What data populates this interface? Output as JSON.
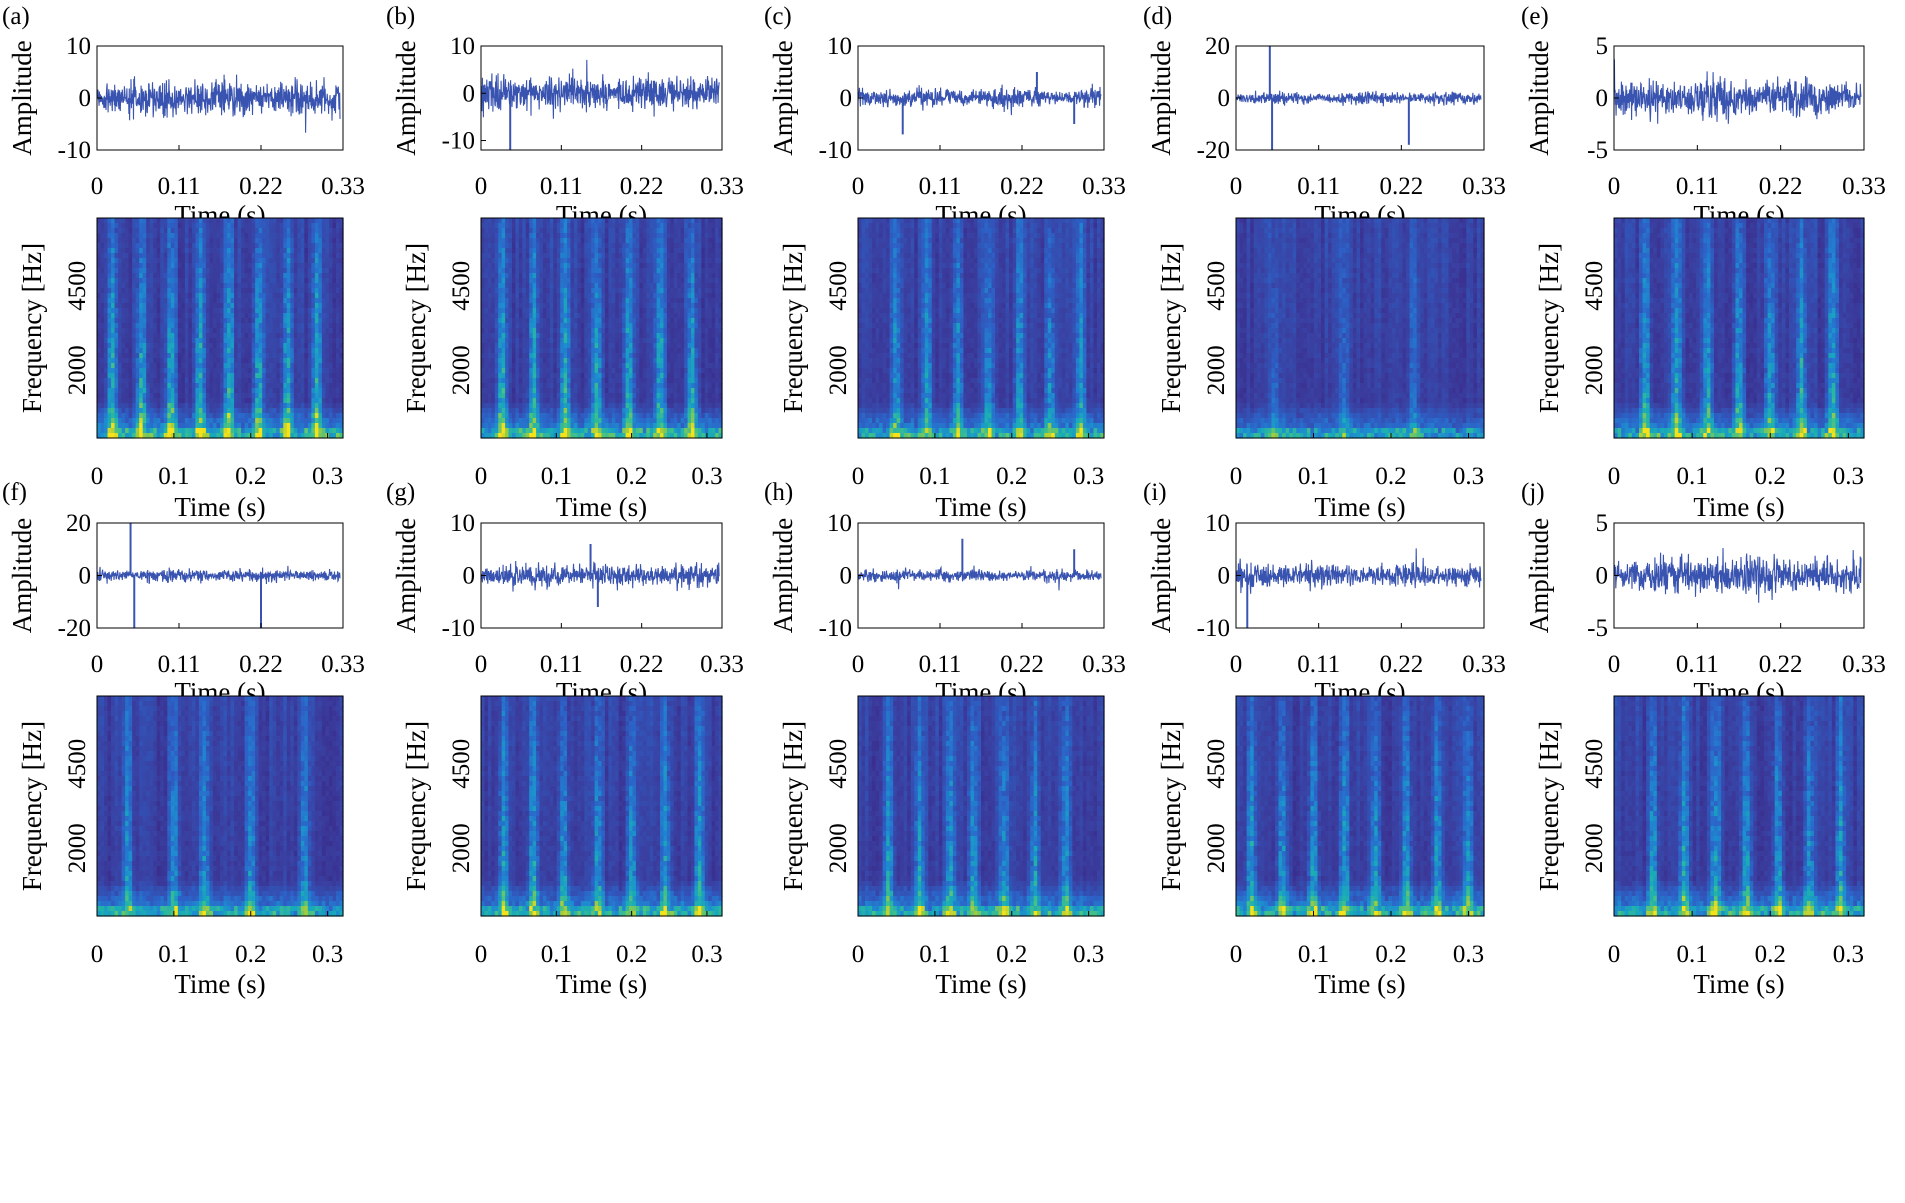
{
  "figure": {
    "description_free": true,
    "signal_color": "#3953b0",
    "colormap": [
      "#3b1a78",
      "#3a3fa0",
      "#2c63c8",
      "#1e8bd0",
      "#19abb8",
      "#40c08a",
      "#9fcc40",
      "#f5e21a"
    ]
  },
  "chart_data": [
    {
      "panel": "(a)",
      "type": "line",
      "title": "",
      "xlabel": "Time (s)",
      "ylabel": "Amplitude",
      "xlim": [
        0,
        0.33
      ],
      "ylim": [
        -10,
        10
      ],
      "xticks": [
        "0",
        "0.11",
        "0.22",
        "0.33"
      ],
      "yticks": [
        "10",
        "0",
        "-10"
      ],
      "yticks_values": [
        10,
        0,
        -10
      ],
      "amplitude": 6,
      "spikes": []
    },
    {
      "panel": "(a)",
      "type": "heatmap",
      "title": "",
      "xlabel": "Time (s)",
      "ylabel": "Frequency [Hz]",
      "xlim": [
        0,
        0.32
      ],
      "xticks": [
        "0",
        "0.1",
        "0.2",
        "0.3"
      ],
      "yticks": [
        "4500",
        "2000"
      ],
      "yticks_values": [
        4500,
        2000
      ],
      "ylim": [
        0,
        6500
      ],
      "impulse_times": [
        0.02,
        0.058,
        0.096,
        0.134,
        0.172,
        0.21,
        0.248,
        0.286
      ],
      "intensity": 0.75
    },
    {
      "panel": "(b)",
      "type": "line",
      "title": "",
      "xlabel": "Time (s)",
      "ylabel": "Amplitude",
      "xlim": [
        0,
        0.33
      ],
      "ylim": [
        -12,
        10
      ],
      "xticks": [
        "0",
        "0.11",
        "0.22",
        "0.33"
      ],
      "yticks": [
        "10",
        "0",
        "-10"
      ],
      "yticks_values": [
        10,
        0,
        -10
      ],
      "amplitude": 6,
      "spikes": [
        {
          "t": 0.04,
          "v": -12
        }
      ]
    },
    {
      "panel": "(b)",
      "type": "heatmap",
      "title": "",
      "xlabel": "Time (s)",
      "ylabel": "Frequency [Hz]",
      "xlim": [
        0,
        0.32
      ],
      "xticks": [
        "0",
        "0.1",
        "0.2",
        "0.3"
      ],
      "yticks": [
        "4500",
        "2000"
      ],
      "yticks_values": [
        4500,
        2000
      ],
      "ylim": [
        0,
        6500
      ],
      "impulse_times": [
        0.028,
        0.07,
        0.112,
        0.154,
        0.196,
        0.238,
        0.28
      ],
      "intensity": 0.7
    },
    {
      "panel": "(c)",
      "type": "line",
      "title": "",
      "xlabel": "Time (s)",
      "ylabel": "Amplitude",
      "xlim": [
        0,
        0.33
      ],
      "ylim": [
        -10,
        10
      ],
      "xticks": [
        "0",
        "0.11",
        "0.22",
        "0.33"
      ],
      "yticks": [
        "10",
        "0",
        "-10"
      ],
      "yticks_values": [
        10,
        0,
        -10
      ],
      "amplitude": 3,
      "spikes": [
        {
          "t": 0.06,
          "v": -7
        },
        {
          "t": 0.24,
          "v": 5
        },
        {
          "t": 0.29,
          "v": -5
        }
      ]
    },
    {
      "panel": "(c)",
      "type": "heatmap",
      "title": "",
      "xlabel": "Time (s)",
      "ylabel": "Frequency [Hz]",
      "xlim": [
        0,
        0.32
      ],
      "xticks": [
        "0",
        "0.1",
        "0.2",
        "0.3"
      ],
      "yticks": [
        "4500",
        "2000"
      ],
      "yticks_values": [
        4500,
        2000
      ],
      "ylim": [
        0,
        6500
      ],
      "impulse_times": [
        0.05,
        0.09,
        0.13,
        0.17,
        0.21,
        0.25,
        0.29
      ],
      "intensity": 0.55
    },
    {
      "panel": "(d)",
      "type": "line",
      "title": "",
      "xlabel": "Time (s)",
      "ylabel": "Amplitude",
      "xlim": [
        0,
        0.33
      ],
      "ylim": [
        -20,
        20
      ],
      "xticks": [
        "0",
        "0.11",
        "0.22",
        "0.33"
      ],
      "yticks": [
        "20",
        "0",
        "-20"
      ],
      "yticks_values": [
        20,
        0,
        -20
      ],
      "amplitude": 4,
      "spikes": [
        {
          "t": 0.045,
          "v": 20
        },
        {
          "t": 0.048,
          "v": -20
        },
        {
          "t": 0.23,
          "v": -18
        }
      ]
    },
    {
      "panel": "(d)",
      "type": "heatmap",
      "title": "",
      "xlabel": "Time (s)",
      "ylabel": "Frequency [Hz]",
      "xlim": [
        0,
        0.32
      ],
      "xticks": [
        "0",
        "0.1",
        "0.2",
        "0.3"
      ],
      "yticks": [
        "4500",
        "2000"
      ],
      "yticks_values": [
        4500,
        2000
      ],
      "ylim": [
        0,
        6500
      ],
      "impulse_times": [
        0.05,
        0.14,
        0.23
      ],
      "intensity": 0.3
    },
    {
      "panel": "(e)",
      "type": "line",
      "title": "",
      "xlabel": "Time (s)",
      "ylabel": "Amplitude",
      "xlim": [
        0,
        0.33
      ],
      "ylim": [
        -5,
        5
      ],
      "xticks": [
        "0",
        "0.11",
        "0.22",
        "0.33"
      ],
      "yticks": [
        "5",
        "0",
        "-5"
      ],
      "yticks_values": [
        5,
        0,
        -5
      ],
      "amplitude": 3,
      "spikes": []
    },
    {
      "panel": "(e)",
      "type": "heatmap",
      "title": "",
      "xlabel": "Time (s)",
      "ylabel": "Frequency [Hz]",
      "xlim": [
        0,
        0.32
      ],
      "xticks": [
        "0",
        "0.1",
        "0.2",
        "0.3"
      ],
      "yticks": [
        "4500",
        "2000"
      ],
      "yticks_values": [
        4500,
        2000
      ],
      "ylim": [
        0,
        6500
      ],
      "impulse_times": [
        0.04,
        0.08,
        0.12,
        0.16,
        0.2,
        0.24,
        0.28
      ],
      "intensity": 0.65
    },
    {
      "panel": "(f)",
      "type": "line",
      "title": "",
      "xlabel": "Time (s)",
      "ylabel": "Amplitude",
      "xlim": [
        0,
        0.33
      ],
      "ylim": [
        -20,
        20
      ],
      "xticks": [
        "0",
        "0.11",
        "0.22",
        "0.33"
      ],
      "yticks": [
        "20",
        "0",
        "-20"
      ],
      "yticks_values": [
        20,
        0,
        -20
      ],
      "amplitude": 4,
      "spikes": [
        {
          "t": 0.045,
          "v": 20
        },
        {
          "t": 0.05,
          "v": -20
        },
        {
          "t": 0.22,
          "v": -20
        }
      ]
    },
    {
      "panel": "(f)",
      "type": "heatmap",
      "title": "",
      "xlabel": "Time (s)",
      "ylabel": "Frequency [Hz]",
      "xlim": [
        0,
        0.32
      ],
      "xticks": [
        "0",
        "0.1",
        "0.2",
        "0.3"
      ],
      "yticks": [
        "4500",
        "2000"
      ],
      "yticks_values": [
        4500,
        2000
      ],
      "ylim": [
        0,
        6500
      ],
      "impulse_times": [
        0.04,
        0.1,
        0.14,
        0.2,
        0.27
      ],
      "intensity": 0.5
    },
    {
      "panel": "(g)",
      "type": "line",
      "title": "",
      "xlabel": "Time (s)",
      "ylabel": "Amplitude",
      "xlim": [
        0,
        0.33
      ],
      "ylim": [
        -10,
        10
      ],
      "xticks": [
        "0",
        "0.11",
        "0.22",
        "0.33"
      ],
      "yticks": [
        "10",
        "0",
        "-10"
      ],
      "yticks_values": [
        10,
        0,
        -10
      ],
      "amplitude": 3.5,
      "spikes": [
        {
          "t": 0.15,
          "v": 6
        },
        {
          "t": 0.16,
          "v": -6
        }
      ]
    },
    {
      "panel": "(g)",
      "type": "heatmap",
      "title": "",
      "xlabel": "Time (s)",
      "ylabel": "Frequency [Hz]",
      "xlim": [
        0,
        0.32
      ],
      "xticks": [
        "0",
        "0.1",
        "0.2",
        "0.3"
      ],
      "yticks": [
        "4500",
        "2000"
      ],
      "yticks_values": [
        4500,
        2000
      ],
      "ylim": [
        0,
        6500
      ],
      "impulse_times": [
        0.03,
        0.07,
        0.11,
        0.155,
        0.2,
        0.245,
        0.29
      ],
      "intensity": 0.6
    },
    {
      "panel": "(h)",
      "type": "line",
      "title": "",
      "xlabel": "Time (s)",
      "ylabel": "Amplitude",
      "xlim": [
        0,
        0.33
      ],
      "ylim": [
        -10,
        10
      ],
      "xticks": [
        "0",
        "0.11",
        "0.22",
        "0.33"
      ],
      "yticks": [
        "10",
        "0",
        "-10"
      ],
      "yticks_values": [
        10,
        0,
        -10
      ],
      "amplitude": 2,
      "spikes": [
        {
          "t": 0.14,
          "v": 7
        },
        {
          "t": 0.29,
          "v": 5
        }
      ]
    },
    {
      "panel": "(h)",
      "type": "heatmap",
      "title": "",
      "xlabel": "Time (s)",
      "ylabel": "Frequency [Hz]",
      "xlim": [
        0,
        0.32
      ],
      "xticks": [
        "0",
        "0.1",
        "0.2",
        "0.3"
      ],
      "yticks": [
        "4500",
        "2000"
      ],
      "yticks_values": [
        4500,
        2000
      ],
      "ylim": [
        0,
        6500
      ],
      "impulse_times": [
        0.04,
        0.08,
        0.12,
        0.15,
        0.19,
        0.23,
        0.27
      ],
      "intensity": 0.55
    },
    {
      "panel": "(i)",
      "type": "line",
      "title": "",
      "xlabel": "Time (s)",
      "ylabel": "Amplitude",
      "xlim": [
        0,
        0.33
      ],
      "ylim": [
        -10,
        10
      ],
      "xticks": [
        "0",
        "0.11",
        "0.22",
        "0.33"
      ],
      "yticks": [
        "10",
        "0",
        "-10"
      ],
      "yticks_values": [
        10,
        0,
        -10
      ],
      "amplitude": 4,
      "spikes": [
        {
          "t": 0.015,
          "v": -10
        }
      ]
    },
    {
      "panel": "(i)",
      "type": "heatmap",
      "title": "",
      "xlabel": "Time (s)",
      "ylabel": "Frequency [Hz]",
      "xlim": [
        0,
        0.32
      ],
      "xticks": [
        "0",
        "0.1",
        "0.2",
        "0.3"
      ],
      "yticks": [
        "4500",
        "2000"
      ],
      "yticks_values": [
        4500,
        2000
      ],
      "ylim": [
        0,
        6500
      ],
      "impulse_times": [
        0.02,
        0.06,
        0.1,
        0.14,
        0.18,
        0.22,
        0.26,
        0.3
      ],
      "intensity": 0.6
    },
    {
      "panel": "(j)",
      "type": "line",
      "title": "",
      "xlabel": "Time (s)",
      "ylabel": "Amplitude",
      "xlim": [
        0,
        0.33
      ],
      "ylim": [
        -5,
        5
      ],
      "xticks": [
        "0",
        "0.11",
        "0.22",
        "0.33"
      ],
      "yticks": [
        "5",
        "0",
        "-5"
      ],
      "yticks_values": [
        5,
        0,
        -5
      ],
      "amplitude": 3,
      "spikes": []
    },
    {
      "panel": "(j)",
      "type": "heatmap",
      "title": "",
      "xlabel": "Time (s)",
      "ylabel": "Frequency [Hz]",
      "xlim": [
        0,
        0.32
      ],
      "xticks": [
        "0",
        "0.1",
        "0.2",
        "0.3"
      ],
      "yticks": [
        "4500",
        "2000"
      ],
      "yticks_values": [
        4500,
        2000
      ],
      "ylim": [
        0,
        6500
      ],
      "impulse_times": [
        0.05,
        0.09,
        0.13,
        0.17,
        0.21,
        0.25,
        0.29
      ],
      "intensity": 0.6
    }
  ]
}
